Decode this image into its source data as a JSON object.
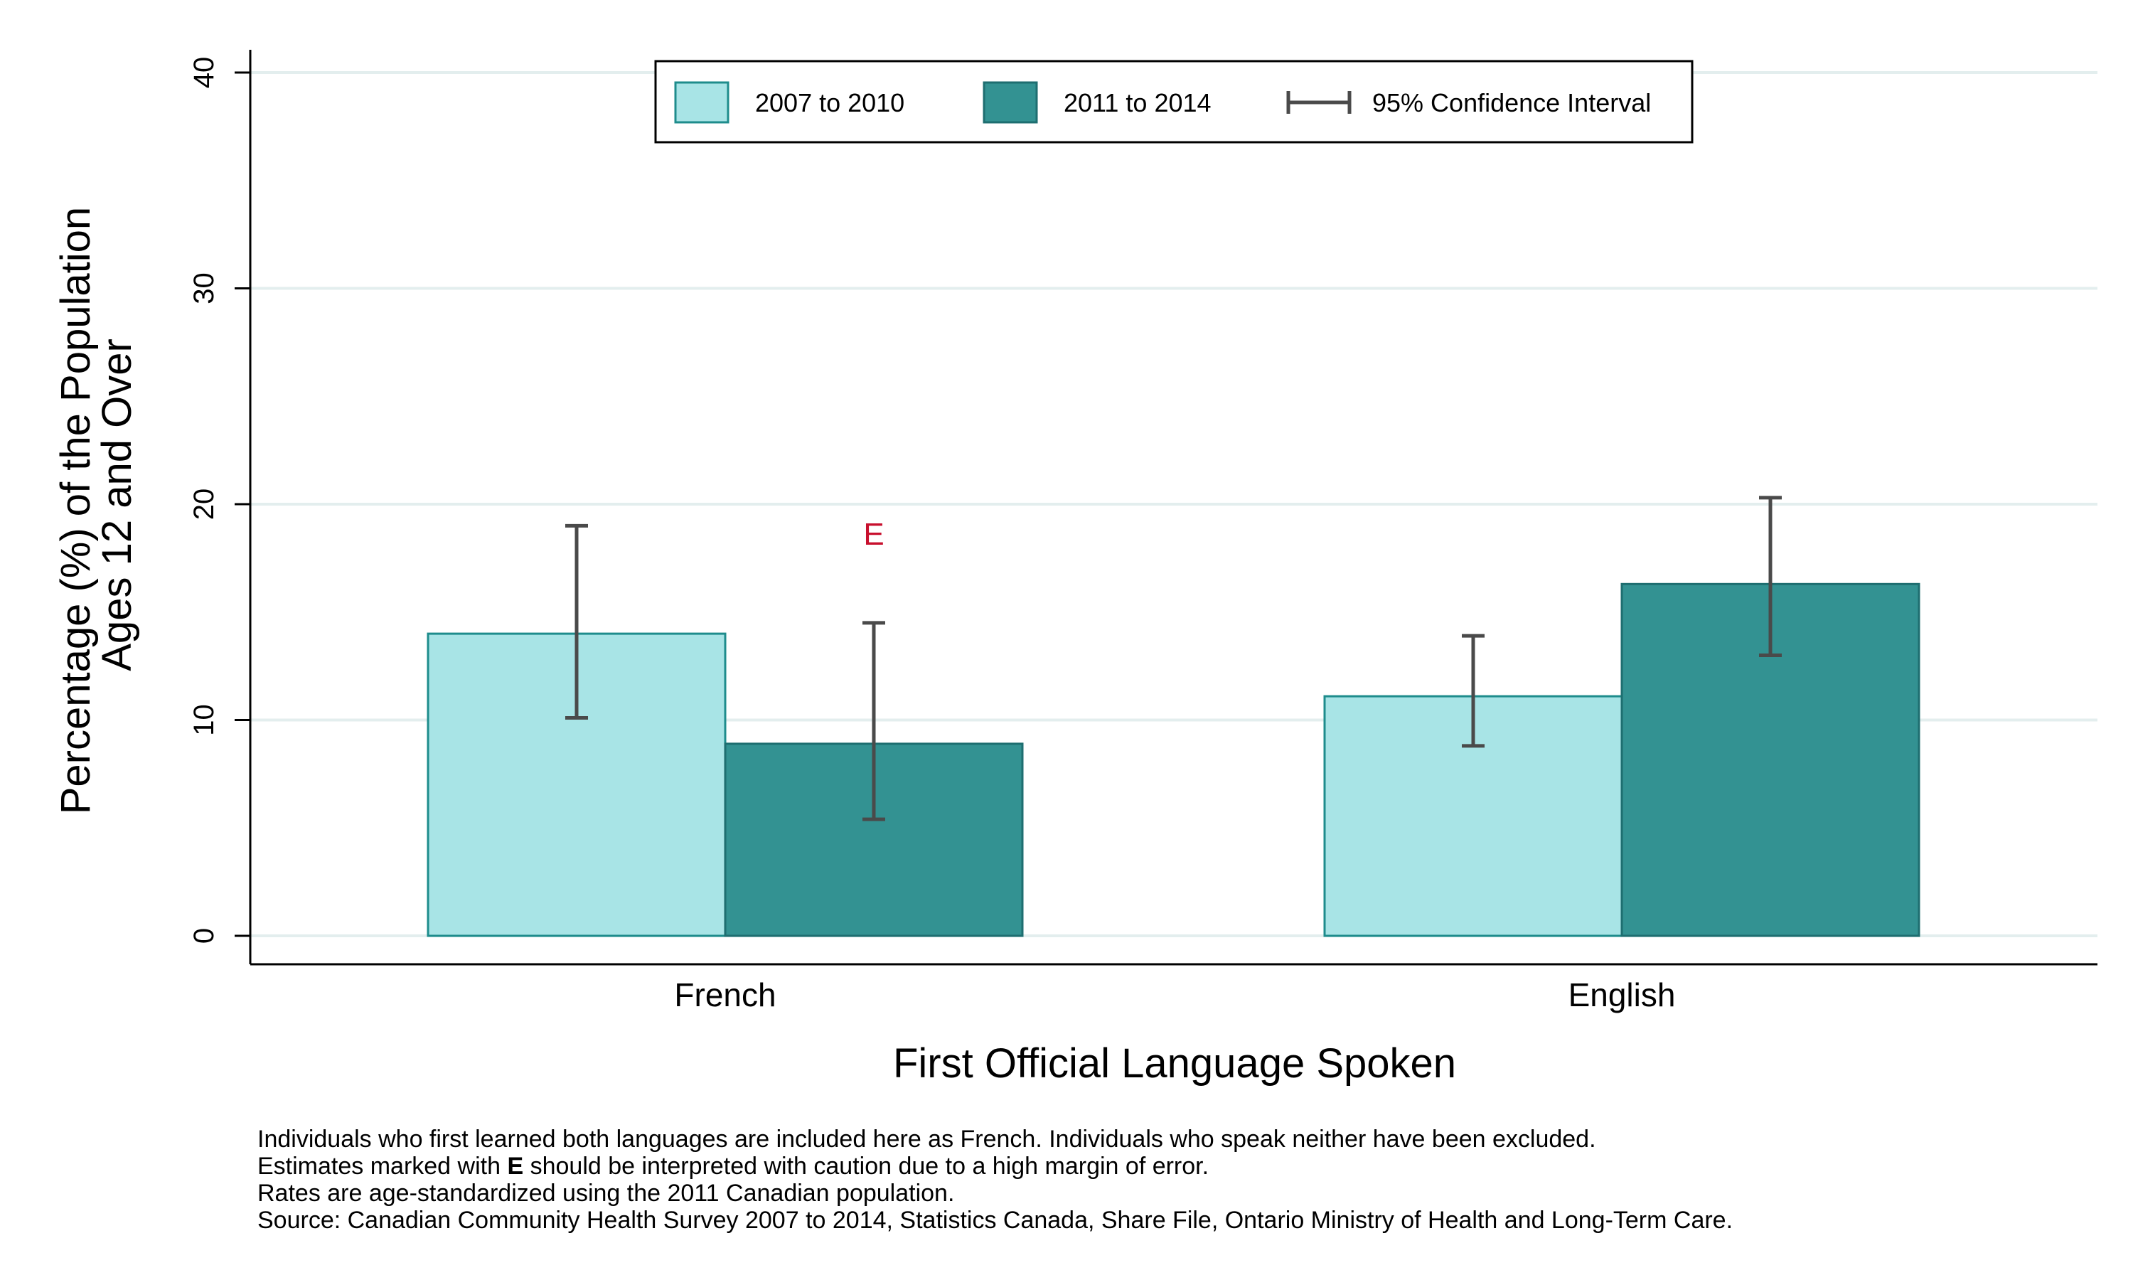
{
  "chart_data": {
    "type": "bar",
    "title": "",
    "xlabel": "First Official Language Spoken",
    "ylabel_lines": [
      "Percentage (%) of the Population",
      "Ages 12 and Over"
    ],
    "ylim": [
      0,
      40
    ],
    "yticks": [
      0,
      10,
      20,
      30,
      40
    ],
    "grid": true,
    "legend_position": "top-center",
    "categories": [
      "French",
      "English"
    ],
    "series": [
      {
        "name": "2007 to 2010",
        "color": "#a8e4e6",
        "edge": "#1e8c8c",
        "values": [
          14.0,
          11.1
        ],
        "ci_low": [
          10.1,
          8.8
        ],
        "ci_high": [
          19.0,
          13.9
        ],
        "flags": [
          "",
          ""
        ]
      },
      {
        "name": "2011 to 2014",
        "color": "#339292",
        "edge": "#1e6e70",
        "values": [
          8.9,
          16.3
        ],
        "ci_low": [
          5.4,
          13.0
        ],
        "ci_high": [
          14.5,
          20.3
        ],
        "flags": [
          "E",
          ""
        ]
      }
    ],
    "ci_legend_label": "95% Confidence Interval",
    "flag_color": "#c8102e",
    "errorbar_color": "#4a4a4a",
    "grid_color": "#e3eeee"
  },
  "footnotes": {
    "line1": "Individuals who first learned both languages are included here as French.  Individuals who speak neither have been excluded.",
    "line2_pre": "Estimates marked with ",
    "line2_bold": "E",
    "line2_post": " should be interpreted with caution due to a high margin of error.",
    "line3": "Rates are age-standardized using the 2011 Canadian population.",
    "line4": "Source: Canadian Community Health Survey 2007 to 2014, Statistics Canada, Share File, Ontario Ministry of Health and Long-Term Care."
  }
}
